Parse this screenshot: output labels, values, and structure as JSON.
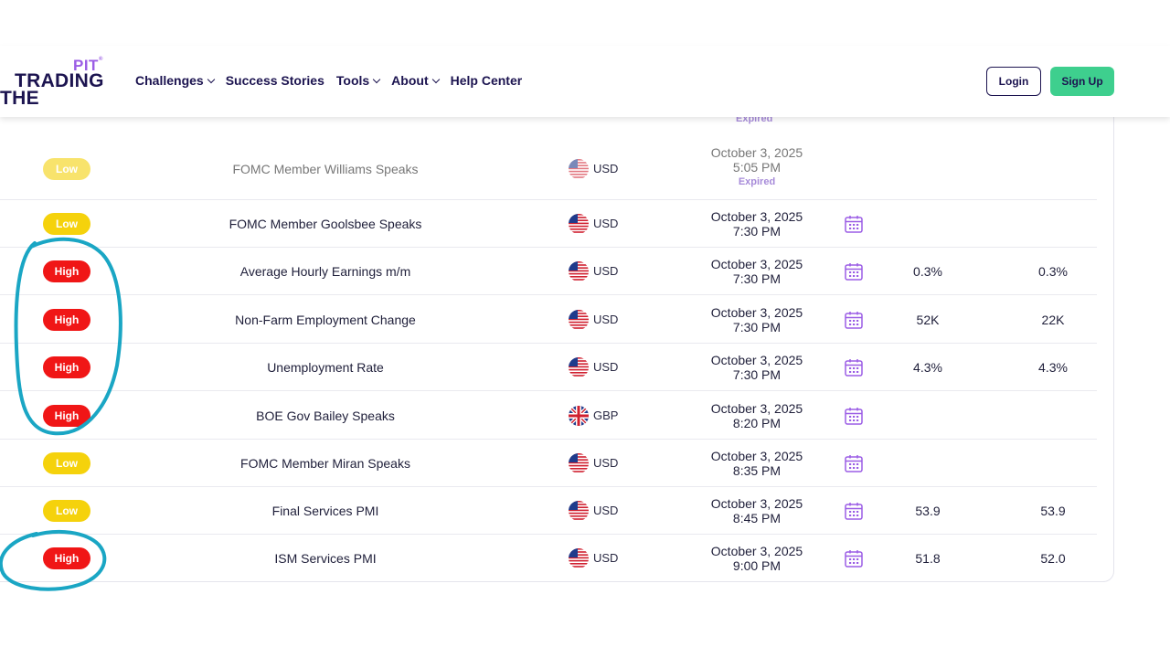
{
  "header": {
    "logo": {
      "pit": "PIT",
      "trading": "TRADING",
      "the": "THE"
    },
    "nav": [
      {
        "label": "Challenges",
        "dropdown": true
      },
      {
        "label": "Success Stories",
        "dropdown": false
      },
      {
        "label": "Tools",
        "dropdown": true
      },
      {
        "label": "About",
        "dropdown": true
      },
      {
        "label": "Help Center",
        "dropdown": false
      }
    ],
    "login_label": "Login",
    "signup_label": "Sign Up"
  },
  "table": {
    "expired_top": "Expired",
    "rows": [
      {
        "impact": "Low",
        "event": "FOMC Member Williams Speaks",
        "currency": "USD",
        "flag": "us-flag-icon",
        "date": "October 3, 2025",
        "time": "5:05 PM",
        "status": "Expired",
        "actual": "",
        "forecast": ""
      },
      {
        "impact": "Low",
        "event": "FOMC Member Goolsbee Speaks",
        "currency": "USD",
        "flag": "us-flag-icon",
        "date": "October 3, 2025",
        "time": "7:30 PM",
        "status": "",
        "actual": "",
        "forecast": ""
      },
      {
        "impact": "High",
        "event": "Average Hourly Earnings m/m",
        "currency": "USD",
        "flag": "us-flag-icon",
        "date": "October 3, 2025",
        "time": "7:30 PM",
        "status": "",
        "actual": "0.3%",
        "forecast": "0.3%"
      },
      {
        "impact": "High",
        "event": "Non-Farm Employment Change",
        "currency": "USD",
        "flag": "us-flag-icon",
        "date": "October 3, 2025",
        "time": "7:30 PM",
        "status": "",
        "actual": "52K",
        "forecast": "22K"
      },
      {
        "impact": "High",
        "event": "Unemployment Rate",
        "currency": "USD",
        "flag": "us-flag-icon",
        "date": "October 3, 2025",
        "time": "7:30 PM",
        "status": "",
        "actual": "4.3%",
        "forecast": "4.3%"
      },
      {
        "impact": "High",
        "event": "BOE Gov Bailey Speaks",
        "currency": "GBP",
        "flag": "uk-flag-icon",
        "date": "October 3, 2025",
        "time": "8:20 PM",
        "status": "",
        "actual": "",
        "forecast": ""
      },
      {
        "impact": "Low",
        "event": "FOMC Member Miran Speaks",
        "currency": "USD",
        "flag": "us-flag-icon",
        "date": "October 3, 2025",
        "time": "8:35 PM",
        "status": "",
        "actual": "",
        "forecast": ""
      },
      {
        "impact": "Low",
        "event": "Final Services PMI",
        "currency": "USD",
        "flag": "us-flag-icon",
        "date": "October 3, 2025",
        "time": "8:45 PM",
        "status": "",
        "actual": "53.9",
        "forecast": "53.9"
      },
      {
        "impact": "High",
        "event": "ISM Services PMI",
        "currency": "USD",
        "flag": "us-flag-icon",
        "date": "October 3, 2025",
        "time": "9:00 PM",
        "status": "",
        "actual": "51.8",
        "forecast": "52.0"
      }
    ]
  },
  "colors": {
    "brand_dark": "#1c1450",
    "brand_purple": "#9b5de5",
    "signup_green": "#3ecf8e",
    "high_red": "#f01616",
    "low_yellow": "#f5d20c",
    "annotation_blue": "#1aa6c4"
  }
}
